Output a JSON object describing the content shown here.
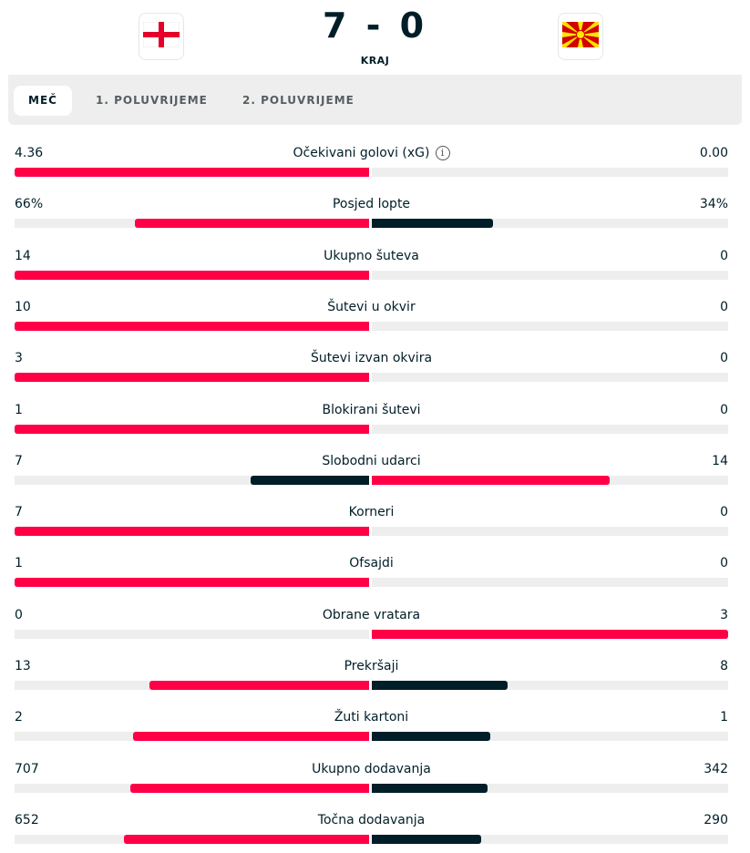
{
  "header": {
    "home_team_flag": "england-flag-icon",
    "away_team_flag": "north-macedonia-flag-icon",
    "score": "7 - 0",
    "status": "KRAJ"
  },
  "tabs": [
    {
      "label": "MEČ",
      "active": true
    },
    {
      "label": "1. POLUVRIJEME",
      "active": false
    },
    {
      "label": "2. POLUVRIJEME",
      "active": false
    }
  ],
  "colors": {
    "winner": "#ff0046",
    "loser": "#001e28",
    "track": "#eeeeee"
  },
  "stats": [
    {
      "name": "Očekivani golovi (xG)",
      "home": "4.36",
      "away": "0.00",
      "info": true,
      "home_share": 1.0,
      "away_share": 0.0,
      "home_color": "winner",
      "away_color": "loser"
    },
    {
      "name": "Posjed lopte",
      "home": "66%",
      "away": "34%",
      "info": false,
      "home_share": 0.66,
      "away_share": 0.34,
      "home_color": "winner",
      "away_color": "loser"
    },
    {
      "name": "Ukupno šuteva",
      "home": "14",
      "away": "0",
      "info": false,
      "home_share": 1.0,
      "away_share": 0.0,
      "home_color": "winner",
      "away_color": "loser"
    },
    {
      "name": "Šutevi u okvir",
      "home": "10",
      "away": "0",
      "info": false,
      "home_share": 1.0,
      "away_share": 0.0,
      "home_color": "winner",
      "away_color": "loser"
    },
    {
      "name": "Šutevi izvan okvira",
      "home": "3",
      "away": "0",
      "info": false,
      "home_share": 1.0,
      "away_share": 0.0,
      "home_color": "winner",
      "away_color": "loser"
    },
    {
      "name": "Blokirani šutevi",
      "home": "1",
      "away": "0",
      "info": false,
      "home_share": 1.0,
      "away_share": 0.0,
      "home_color": "winner",
      "away_color": "loser"
    },
    {
      "name": "Slobodni udarci",
      "home": "7",
      "away": "14",
      "info": false,
      "home_share": 0.333,
      "away_share": 0.667,
      "home_color": "loser",
      "away_color": "winner"
    },
    {
      "name": "Korneri",
      "home": "7",
      "away": "0",
      "info": false,
      "home_share": 1.0,
      "away_share": 0.0,
      "home_color": "winner",
      "away_color": "loser"
    },
    {
      "name": "Ofsajdi",
      "home": "1",
      "away": "0",
      "info": false,
      "home_share": 1.0,
      "away_share": 0.0,
      "home_color": "winner",
      "away_color": "loser"
    },
    {
      "name": "Obrane vratara",
      "home": "0",
      "away": "3",
      "info": false,
      "home_share": 0.0,
      "away_share": 1.0,
      "home_color": "loser",
      "away_color": "winner"
    },
    {
      "name": "Prekršaji",
      "home": "13",
      "away": "8",
      "info": false,
      "home_share": 0.619,
      "away_share": 0.381,
      "home_color": "winner",
      "away_color": "loser"
    },
    {
      "name": "Žuti kartoni",
      "home": "2",
      "away": "1",
      "info": false,
      "home_share": 0.667,
      "away_share": 0.333,
      "home_color": "winner",
      "away_color": "loser"
    },
    {
      "name": "Ukupno dodavanja",
      "home": "707",
      "away": "342",
      "info": false,
      "home_share": 0.674,
      "away_share": 0.326,
      "home_color": "winner",
      "away_color": "loser"
    },
    {
      "name": "Točna dodavanja",
      "home": "652",
      "away": "290",
      "info": false,
      "home_share": 0.692,
      "away_share": 0.308,
      "home_color": "winner",
      "away_color": "loser"
    }
  ]
}
